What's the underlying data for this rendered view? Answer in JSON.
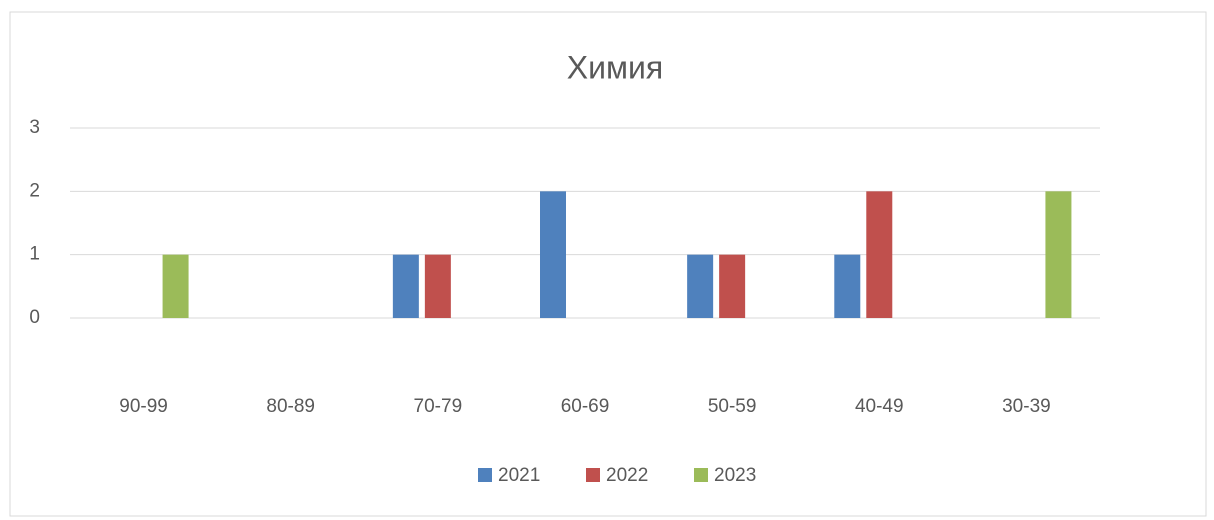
{
  "chart_data": {
    "type": "bar",
    "title": "Химия",
    "categories": [
      "90-99",
      "80-89",
      "70-79",
      "60-69",
      "50-59",
      "40-49",
      "30-39"
    ],
    "series": [
      {
        "name": "2021",
        "color": "#4f81bd",
        "values": [
          0,
          0,
          1,
          2,
          1,
          1,
          0
        ]
      },
      {
        "name": "2022",
        "color": "#c0504d",
        "values": [
          0,
          0,
          1,
          0,
          1,
          2,
          0
        ]
      },
      {
        "name": "2023",
        "color": "#9bbb59",
        "values": [
          1,
          0,
          0,
          0,
          0,
          0,
          2
        ]
      }
    ],
    "ylim": [
      0,
      3
    ],
    "yticks": [
      0,
      1,
      2,
      3
    ],
    "grid": true,
    "legend": "bottom"
  }
}
